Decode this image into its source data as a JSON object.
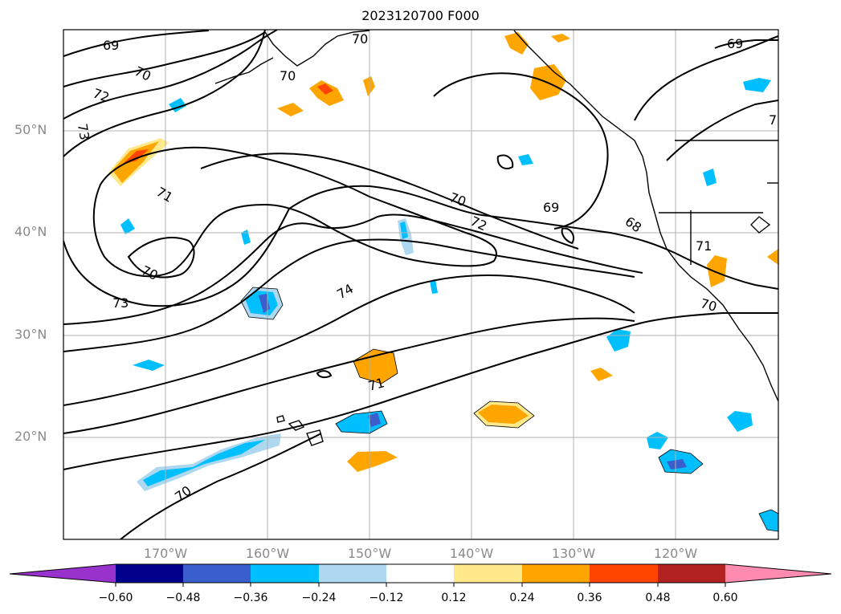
{
  "title": "2023120700 F000",
  "latitude_labels": [
    "50°N",
    "40°N",
    "30°N",
    "20°N"
  ],
  "longitude_labels": [
    "170°W",
    "160°W",
    "150°W",
    "140°W",
    "130°W",
    "120°W"
  ],
  "contour_labels": [
    "69",
    "70",
    "70",
    "70",
    "72",
    "73",
    "71",
    "70",
    "73",
    "74",
    "70",
    "72",
    "69",
    "68",
    "71",
    "70",
    "71",
    "70",
    "69",
    "7"
  ],
  "colorbar": {
    "ticks": [
      "−0.60",
      "−0.48",
      "−0.36",
      "−0.24",
      "−0.12",
      "0.12",
      "0.24",
      "0.36",
      "0.48",
      "0.60"
    ],
    "colors": [
      "#9932cc",
      "#00008b",
      "#3a5fcd",
      "#00bfff",
      "#add8f0",
      "#ffffff",
      "#ffe98a",
      "#ffa500",
      "#ff4500",
      "#b22222",
      "#ff8cb0"
    ]
  }
}
